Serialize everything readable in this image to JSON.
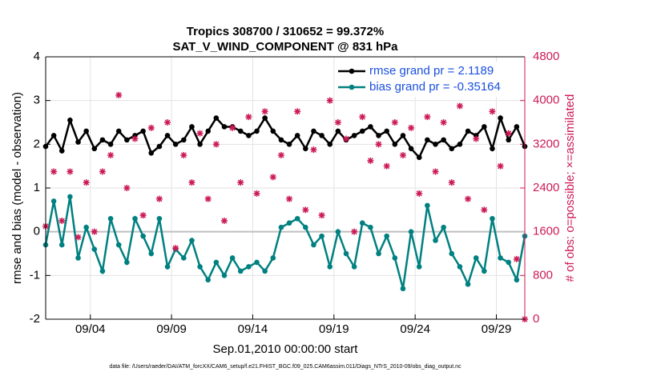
{
  "chart_data": {
    "type": "line",
    "title": "Tropics 308700 / 310652 = 99.372%",
    "subtitle": "SAT_V_WIND_COMPONENT @ 831 hPa",
    "x_label": "Sep.01,2010 00:00:00 start",
    "y_label": "rmse and bias (model - observation)",
    "y2_label": "# of obs: o=possible; ×=assimilated",
    "footnote": "data file: /Users/raeder/DAI/ATM_forcXX/CAM6_setup/f.e21.FHIST_BGC.f09_025.CAM6assim.011/Diags_NTrS_2010-09/obs_diag_output.nc",
    "x": [
      1.25,
      1.75,
      2.25,
      2.75,
      3.25,
      3.75,
      4.25,
      4.75,
      5.25,
      5.75,
      6.25,
      6.75,
      7.25,
      7.75,
      8.25,
      8.75,
      9.25,
      9.75,
      10.25,
      10.75,
      11.25,
      11.75,
      12.25,
      12.75,
      13.25,
      13.75,
      14.25,
      14.75,
      15.25,
      15.75,
      16.25,
      16.75,
      17.25,
      17.75,
      18.25,
      18.75,
      19.25,
      19.75,
      20.25,
      20.75,
      21.25,
      21.75,
      22.25,
      22.75,
      23.25,
      23.75,
      24.25,
      24.75,
      25.25,
      25.75,
      26.25,
      26.75,
      27.25,
      27.75,
      28.25,
      28.75,
      29.25,
      29.75,
      30.25,
      30.75
    ],
    "xlim": [
      1.25,
      30.75
    ],
    "xticks": [
      {
        "value": 4,
        "label": "09/04"
      },
      {
        "value": 9,
        "label": "09/09"
      },
      {
        "value": 14,
        "label": "09/14"
      },
      {
        "value": 19,
        "label": "09/19"
      },
      {
        "value": 24,
        "label": "09/24"
      },
      {
        "value": 29,
        "label": "09/29"
      }
    ],
    "ylim": [
      -2,
      4
    ],
    "yticks": [
      -2,
      -1,
      0,
      1,
      2,
      3,
      4
    ],
    "y2lim": [
      0,
      4800
    ],
    "y2ticks": [
      0,
      800,
      1600,
      2400,
      3200,
      4000,
      4800
    ],
    "y2_color": "#cc1a55",
    "grid": true,
    "reference_line": 0,
    "legend": "upper right",
    "legend_text_color": "#1a50e0",
    "series": [
      {
        "name": "rmse grand pr = 2.1189",
        "color": "#000000",
        "values": [
          1.95,
          2.2,
          1.85,
          2.55,
          2.05,
          2.3,
          1.9,
          2.1,
          2.0,
          2.3,
          2.1,
          2.2,
          2.3,
          1.8,
          1.95,
          2.2,
          2.0,
          2.1,
          2.4,
          2.0,
          2.3,
          2.6,
          2.4,
          2.4,
          2.3,
          2.2,
          2.3,
          2.6,
          2.3,
          2.1,
          2.0,
          2.2,
          1.9,
          2.3,
          2.2,
          2.0,
          2.3,
          2.1,
          2.2,
          2.3,
          2.4,
          2.2,
          2.3,
          2.0,
          2.2,
          1.9,
          1.7,
          2.1,
          2.0,
          2.1,
          1.9,
          2.0,
          2.3,
          2.2,
          2.4,
          1.9,
          2.6,
          2.1,
          2.4,
          1.95
        ]
      },
      {
        "name": "bias grand pr = -0.35164",
        "color": "#008080",
        "values": [
          -0.3,
          0.7,
          -0.3,
          0.8,
          -0.6,
          0.1,
          -0.4,
          -0.9,
          0.3,
          -0.3,
          -0.7,
          0.3,
          -0.1,
          -0.5,
          0.3,
          -0.8,
          -0.4,
          -0.6,
          -0.2,
          -0.8,
          -1.1,
          -0.7,
          -1.0,
          -0.6,
          -0.9,
          -0.8,
          -0.7,
          -0.9,
          -0.6,
          0.1,
          0.2,
          0.3,
          0.1,
          -0.3,
          -0.1,
          -0.8,
          0.0,
          -0.5,
          -0.8,
          0.2,
          0.1,
          -0.5,
          -0.1,
          -0.6,
          -1.3,
          0.0,
          -0.8,
          0.6,
          -0.2,
          0.1,
          -0.5,
          -0.8,
          -1.2,
          -0.6,
          -0.9,
          0.3,
          -0.6,
          -0.7,
          -1.1,
          -0.1
        ]
      },
      {
        "axis": "y2",
        "color": "#cc1a55",
        "marker": "asterisk",
        "values": [
          1700,
          2700,
          1800,
          2700,
          1500,
          2500,
          1600,
          2700,
          3000,
          4100,
          2400,
          3300,
          1900,
          3500,
          2200,
          3600,
          1300,
          3000,
          2500,
          3400,
          2200,
          3200,
          1800,
          3500,
          2500,
          3700,
          2300,
          3800,
          2600,
          3000,
          2200,
          3800,
          2000,
          3100,
          1900,
          4000,
          3600,
          3300,
          1600,
          3700,
          2900,
          3200,
          2800,
          3600,
          3000,
          3500,
          2300,
          3700,
          2700,
          3600,
          2500,
          3900,
          2200,
          3300,
          2000,
          3800,
          2800,
          3400,
          1100,
          0
        ]
      }
    ]
  }
}
